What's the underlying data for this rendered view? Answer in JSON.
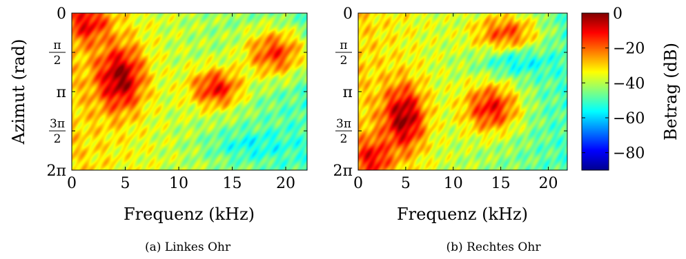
{
  "chart_data": [
    {
      "type": "heatmap",
      "caption": "(a) Linkes Ohr",
      "xlabel": "Frequenz (kHz)",
      "ylabel": "Azimut (rad)",
      "xlim": [
        0,
        22
      ],
      "ylim_rad": [
        0,
        6.2832
      ],
      "x_ticks": [
        0,
        5,
        10,
        15,
        20
      ],
      "y_ticks": [
        {
          "value": 0,
          "label": "0"
        },
        {
          "value": 1.5708,
          "num": "π",
          "den": "2"
        },
        {
          "value": 3.1416,
          "label": "π"
        },
        {
          "value": 4.7124,
          "num": "3π",
          "den": "2"
        },
        {
          "value": 6.2832,
          "label": "2π"
        }
      ],
      "features": [
        {
          "f": 4.5,
          "az": 2.6,
          "f_spread": 2.2,
          "az_spread": 1.3,
          "db": -2
        },
        {
          "f": 1.5,
          "az": 0.4,
          "f_spread": 2.0,
          "az_spread": 0.8,
          "db": -10
        },
        {
          "f": 13.5,
          "az": 3.0,
          "f_spread": 2.5,
          "az_spread": 0.8,
          "db": -12
        },
        {
          "f": 19.0,
          "az": 1.6,
          "f_spread": 3.0,
          "az_spread": 1.0,
          "db": -16
        },
        {
          "f": 17.0,
          "az": 5.3,
          "f_spread": 4.0,
          "az_spread": 0.6,
          "db": -55
        }
      ]
    },
    {
      "type": "heatmap",
      "caption": "(b) Rechtes Ohr",
      "xlabel": "Frequenz (kHz)",
      "ylabel": "",
      "xlim": [
        0,
        22
      ],
      "ylim_rad": [
        0,
        6.2832
      ],
      "x_ticks": [
        0,
        5,
        10,
        15,
        20
      ],
      "y_ticks": [
        {
          "value": 0,
          "label": "0"
        },
        {
          "value": 1.5708,
          "num": "π",
          "den": "2"
        },
        {
          "value": 3.1416,
          "label": "π"
        },
        {
          "value": 4.7124,
          "num": "3π",
          "den": "2"
        },
        {
          "value": 6.2832,
          "label": "2π"
        }
      ],
      "features": [
        {
          "f": 4.8,
          "az": 4.2,
          "f_spread": 2.2,
          "az_spread": 1.3,
          "db": -2
        },
        {
          "f": 1.5,
          "az": 5.8,
          "f_spread": 2.0,
          "az_spread": 0.8,
          "db": -10
        },
        {
          "f": 14.0,
          "az": 3.8,
          "f_spread": 3.0,
          "az_spread": 1.0,
          "db": -12
        },
        {
          "f": 15.5,
          "az": 0.8,
          "f_spread": 3.5,
          "az_spread": 0.8,
          "db": -18
        },
        {
          "f": 17.0,
          "az": 2.0,
          "f_spread": 4.0,
          "az_spread": 0.5,
          "db": -55
        }
      ]
    }
  ],
  "colorbar": {
    "label": "Betrag (dB)",
    "range": [
      -90,
      0
    ],
    "ticks": [
      {
        "value": 0,
        "label": "0"
      },
      {
        "value": -20,
        "label": "−20"
      },
      {
        "value": -40,
        "label": "−40"
      },
      {
        "value": -60,
        "label": "−60"
      },
      {
        "value": -80,
        "label": "−80"
      }
    ],
    "colormap": "jet"
  }
}
